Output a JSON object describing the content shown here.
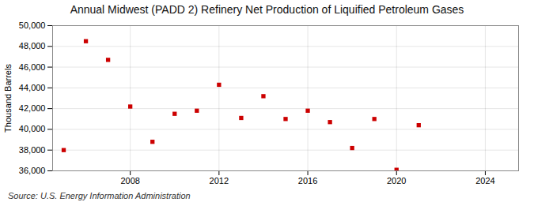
{
  "chart_data": {
    "type": "scatter",
    "title": "Annual Midwest (PADD 2) Refinery Net Production of Liquified Petroleum Gases",
    "ylabel": "Thousand Barrels",
    "annotation": "Source: U.S. Energy Information Administration",
    "x": [
      2005,
      2006,
      2007,
      2008,
      2009,
      2010,
      2011,
      2012,
      2013,
      2014,
      2015,
      2016,
      2017,
      2018,
      2019,
      2020,
      2021
    ],
    "values": [
      38000,
      48500,
      46700,
      42200,
      38800,
      41500,
      41800,
      44300,
      41100,
      43200,
      41000,
      41800,
      40700,
      38200,
      41000,
      36100,
      40400
    ],
    "color": "#cc0000",
    "marker": "square",
    "xlim": [
      2004.5,
      2025.5
    ],
    "ylim": [
      36000,
      50000
    ],
    "xticks": [
      2008,
      2012,
      2016,
      2020,
      2024
    ],
    "yticks": [
      {
        "value": 36000,
        "label": "36,000"
      },
      {
        "value": 38000,
        "label": "38,000"
      },
      {
        "value": 40000,
        "label": "40,000"
      },
      {
        "value": 42000,
        "label": "42,000"
      },
      {
        "value": 44000,
        "label": "44,000"
      },
      {
        "value": 46000,
        "label": "46,000"
      },
      {
        "value": 48000,
        "label": "48,000"
      },
      {
        "value": 50000,
        "label": "50,000"
      }
    ],
    "grid": true
  }
}
